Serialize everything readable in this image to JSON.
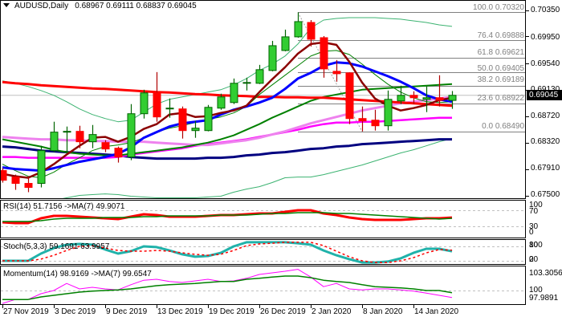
{
  "chart_data": {
    "type": "candlestick",
    "title": "AUDUSD,Daily",
    "ohlc_text": "0.68967 0.69111 0.68837 0.69045",
    "ohlc_summary": {
      "open": "0.68967",
      "high": "0.69111",
      "low": "0.68837",
      "close": "0.69045"
    },
    "ylim": [
      0.675,
      0.7035
    ],
    "y_ticks": [
      "0.70350",
      "0.69950",
      "0.69540",
      "0.69130",
      "0.68720",
      "0.68320",
      "0.67910",
      "0.67500"
    ],
    "current_price": "0.69045",
    "current_price_value": 0.69045,
    "x_ticks": [
      {
        "index": 0,
        "label": "27 Nov 2019"
      },
      {
        "index": 4,
        "label": "3 Dec 2019"
      },
      {
        "index": 8,
        "label": "9 Dec 2019"
      },
      {
        "index": 12,
        "label": "13 Dec 2019"
      },
      {
        "index": 16,
        "label": "19 Dec 2019"
      },
      {
        "index": 20,
        "label": "26 Dec 2019"
      },
      {
        "index": 24,
        "label": "2 Jan 2020"
      },
      {
        "index": 28,
        "label": "8 Jan 2020"
      },
      {
        "index": 32,
        "label": "14 Jan 2020"
      }
    ],
    "colors": {
      "bull_body": "#32cd32",
      "bull_edge": "#006400",
      "bear_body": "#ff0000",
      "bear_edge": "#b00000",
      "bid_line": "#c0c0c0"
    },
    "candle_fields": [
      "open",
      "high",
      "low",
      "close"
    ],
    "candles": [
      [
        0.67888,
        0.67925,
        0.67703,
        0.6774
      ],
      [
        0.67789,
        0.67826,
        0.67592,
        0.67691
      ],
      [
        0.67691,
        0.67801,
        0.67556,
        0.67629
      ],
      [
        0.67691,
        0.68269,
        0.67629,
        0.68195
      ],
      [
        0.68195,
        0.68639,
        0.68171,
        0.68479
      ],
      [
        0.68479,
        0.68565,
        0.68171,
        0.68491
      ],
      [
        0.68491,
        0.68577,
        0.68232,
        0.68331
      ],
      [
        0.68331,
        0.68589,
        0.68232,
        0.68442
      ],
      [
        0.68318,
        0.68355,
        0.68171,
        0.6822
      ],
      [
        0.68232,
        0.68257,
        0.68011,
        0.68097
      ],
      [
        0.68097,
        0.6891,
        0.68048,
        0.68762
      ],
      [
        0.68762,
        0.69131,
        0.68688,
        0.69082
      ],
      [
        0.69082,
        0.69402,
        0.68639,
        0.68713
      ],
      [
        0.68836,
        0.68996,
        0.68701,
        0.68848
      ],
      [
        0.68836,
        0.68873,
        0.6838,
        0.68503
      ],
      [
        0.68503,
        0.68651,
        0.68392,
        0.6854
      ],
      [
        0.68503,
        0.68897,
        0.68491,
        0.6886
      ],
      [
        0.68848,
        0.6907,
        0.68823,
        0.6902
      ],
      [
        0.68934,
        0.69303,
        0.6891,
        0.6923
      ],
      [
        0.6923,
        0.69316,
        0.69119,
        0.69242
      ],
      [
        0.6923,
        0.69513,
        0.69218,
        0.69439
      ],
      [
        0.69427,
        0.69882,
        0.69414,
        0.69808
      ],
      [
        0.69734,
        0.70055,
        0.69722,
        0.69944
      ],
      [
        0.69944,
        0.7032,
        0.69931,
        0.70178
      ],
      [
        0.70165,
        0.70202,
        0.69796,
        0.69907
      ],
      [
        0.69931,
        0.69956,
        0.69316,
        0.69451
      ],
      [
        0.69414,
        0.69587,
        0.69254,
        0.69377
      ],
      [
        0.6939,
        0.694,
        0.68602,
        0.68688
      ],
      [
        0.68688,
        0.68873,
        0.6849,
        0.68651
      ],
      [
        0.68663,
        0.68823,
        0.68503,
        0.68577
      ],
      [
        0.68577,
        0.69119,
        0.68503,
        0.68983
      ],
      [
        0.68959,
        0.69193,
        0.6891,
        0.69045
      ],
      [
        0.69045,
        0.69107,
        0.6891,
        0.69008
      ],
      [
        0.68983,
        0.69181,
        0.68787,
        0.69008
      ],
      [
        0.69008,
        0.69353,
        0.68873,
        0.68971
      ],
      [
        0.68967,
        0.69111,
        0.68837,
        0.69045
      ]
    ],
    "overlays": [
      {
        "name": "bollinger-upper",
        "color": "#3cb371",
        "width": 1,
        "values": [
          0.69267,
          0.6923,
          0.6918,
          0.69119,
          0.69045,
          0.68946,
          0.68836,
          0.6875,
          0.68688,
          0.68639,
          0.68663,
          0.68786,
          0.6891,
          0.68983,
          0.6902,
          0.69057,
          0.69094,
          0.69131,
          0.69205,
          0.69303,
          0.69427,
          0.69525,
          0.69648,
          0.69833,
          0.70079,
          0.70202,
          0.70227,
          0.70239,
          0.70239,
          0.70239,
          0.70227,
          0.70215,
          0.7019,
          0.70165,
          0.70128,
          0.70104
        ]
      },
      {
        "name": "bollinger-lower",
        "color": "#3cb371",
        "width": 1,
        "values": [
          0.67309,
          0.67334,
          0.67371,
          0.67407,
          0.67432,
          0.67469,
          0.67506,
          0.67518,
          0.6753,
          0.67518,
          0.67494,
          0.67481,
          0.67469,
          0.67469,
          0.67469,
          0.67469,
          0.67481,
          0.67494,
          0.67555,
          0.67604,
          0.67641,
          0.67703,
          0.67777,
          0.67789,
          0.67789,
          0.67826,
          0.67875,
          0.67925,
          0.67974,
          0.68035,
          0.68097,
          0.68159,
          0.68208,
          0.68269,
          0.68331,
          0.6838
        ]
      },
      {
        "name": "ma-navy",
        "color": "#000080",
        "width": 3,
        "values": [
          0.68257,
          0.68245,
          0.6822,
          0.68195,
          0.68183,
          0.68171,
          0.68159,
          0.68146,
          0.68134,
          0.68122,
          0.68097,
          0.68085,
          0.68072,
          0.68072,
          0.68072,
          0.68072,
          0.68085,
          0.68085,
          0.68097,
          0.68122,
          0.68134,
          0.68159,
          0.68171,
          0.68195,
          0.6822,
          0.68232,
          0.68257,
          0.68269,
          0.68294,
          0.68306,
          0.68318,
          0.68331,
          0.68343,
          0.68355,
          0.68368,
          0.68368
        ]
      },
      {
        "name": "ma-magenta",
        "color": "#ff00ff",
        "width": 2.5,
        "values": [
          0.68097,
          0.68097,
          0.68085,
          0.68085,
          0.68085,
          0.68085,
          0.68085,
          0.68085,
          0.68085,
          0.68097,
          0.68134,
          0.68159,
          0.68183,
          0.68208,
          0.68232,
          0.68269,
          0.68294,
          0.68318,
          0.68343,
          0.68368,
          0.68405,
          0.68442,
          0.68479,
          0.68516,
          0.68565,
          0.68602,
          0.68626,
          0.68626,
          0.68639,
          0.68639,
          0.68651,
          0.68663,
          0.68676,
          0.68688,
          0.68701,
          0.68701
        ]
      },
      {
        "name": "ma-violet",
        "color": "#ee82ee",
        "width": 3,
        "values": [
          0.68405,
          0.68392,
          0.6838,
          0.68368,
          0.68368,
          0.68355,
          0.68355,
          0.68343,
          0.68343,
          0.68331,
          0.68331,
          0.68331,
          0.68318,
          0.68306,
          0.68294,
          0.68282,
          0.68282,
          0.68306,
          0.68331,
          0.68355,
          0.68392,
          0.68442,
          0.68491,
          0.68553,
          0.68614,
          0.68663,
          0.68713,
          0.68762,
          0.68811,
          0.68848,
          0.68885,
          0.68922,
          0.68946,
          0.68971,
          0.68996,
          0.6902
        ]
      },
      {
        "name": "ma-dark-green",
        "color": "#008000",
        "width": 2,
        "values": [
          0.68368,
          0.68331,
          0.68294,
          0.68257,
          0.68208,
          0.68171,
          0.68146,
          0.68134,
          0.68122,
          0.68122,
          0.68146,
          0.68171,
          0.68195,
          0.6822,
          0.68245,
          0.68282,
          0.68318,
          0.68368,
          0.68429,
          0.68516,
          0.68602,
          0.68701,
          0.68786,
          0.68873,
          0.68959,
          0.6902,
          0.69057,
          0.69094,
          0.69131,
          0.69143,
          0.69156,
          0.69168,
          0.6918,
          0.69193,
          0.69205,
          0.69217
        ]
      },
      {
        "name": "ma-red",
        "color": "#ff0000",
        "width": 3,
        "values": [
          0.69248,
          0.6923,
          0.69217,
          0.69199,
          0.69186,
          0.69174,
          0.69162,
          0.69149,
          0.69143,
          0.69131,
          0.69119,
          0.69107,
          0.69094,
          0.69088,
          0.69076,
          0.69063,
          0.69057,
          0.69045,
          0.69039,
          0.69033,
          0.6902,
          0.6902,
          0.69014,
          0.69014,
          0.69008,
          0.69008,
          0.68996,
          0.68983,
          0.68971,
          0.68959,
          0.68946,
          0.68934,
          0.68922,
          0.6891,
          0.68897,
          0.68885
        ]
      },
      {
        "name": "ma-thin-green",
        "color": "#008000",
        "width": 1,
        "values": [
          0.67986,
          0.67888,
          0.67801,
          0.67777,
          0.67863,
          0.67986,
          0.68085,
          0.68195,
          0.68257,
          0.68282,
          0.68318,
          0.68392,
          0.68479,
          0.6854,
          0.68577,
          0.68626,
          0.68676,
          0.68713,
          0.68774,
          0.68873,
          0.69057,
          0.69205,
          0.69353,
          0.695,
          0.69648,
          0.69722,
          0.69734,
          0.69673,
          0.69525,
          0.69365,
          0.69217,
          0.69094,
          0.69008,
          0.68946,
          0.68934,
          0.68946
        ]
      },
      {
        "name": "ma-blue",
        "color": "#0000ff",
        "width": 3,
        "values": [
          0.67937,
          0.67912,
          0.679,
          0.67888,
          0.67925,
          0.67974,
          0.68023,
          0.6806,
          0.68097,
          0.68146,
          0.68245,
          0.68392,
          0.68479,
          0.68565,
          0.68614,
          0.68639,
          0.68663,
          0.6875,
          0.68823,
          0.68873,
          0.68934,
          0.69008,
          0.69143,
          0.69303,
          0.6939,
          0.695,
          0.6955,
          0.69537,
          0.69488,
          0.69414,
          0.6934,
          0.69254,
          0.69156,
          0.69045,
          0.68983,
          0.68946
        ]
      },
      {
        "name": "ma-maroon",
        "color": "#8b0000",
        "width": 2.5,
        "values": [
          0.67838,
          0.67801,
          0.67777,
          0.67863,
          0.67986,
          0.68134,
          0.68269,
          0.68392,
          0.68405,
          0.68331,
          0.68405,
          0.68528,
          0.68602,
          0.6875,
          0.68774,
          0.68713,
          0.68725,
          0.68774,
          0.68811,
          0.68885,
          0.69094,
          0.69291,
          0.69476,
          0.69685,
          0.69833,
          0.69858,
          0.69821,
          0.69562,
          0.69242,
          0.68996,
          0.68885,
          0.68811,
          0.68848,
          0.68897,
          0.68971,
          0.69008
        ]
      }
    ],
    "fibonacci": {
      "color": "#808080",
      "anchor_high_index": 23,
      "anchor_low_index": 28,
      "levels": [
        {
          "label": "100.0 0.70320",
          "ratio": "100.0",
          "price": 0.7032
        },
        {
          "label": "76.4 0.69888",
          "ratio": "76.4",
          "price": 0.69888
        },
        {
          "label": "61.8 0.69621",
          "ratio": "61.8",
          "price": 0.69621
        },
        {
          "label": "50.0 0.69405",
          "ratio": "50.0",
          "price": 0.69405
        },
        {
          "label": "38.2 0.69189",
          "ratio": "38.2",
          "price": 0.69189
        },
        {
          "label": "23.6 0.68922",
          "ratio": "23.6",
          "price": 0.68922
        },
        {
          "label": "0.0 0.68490",
          "ratio": "0.0",
          "price": 0.6849
        }
      ]
    },
    "indicators": [
      {
        "name": "RSI",
        "label": "RSI(14) 51.7156  ->MA(7) 49.9071",
        "ylim": [
          0,
          100
        ],
        "axis_labels": [
          "100",
          "70",
          "30",
          "0"
        ],
        "levels": [
          70,
          30
        ],
        "series": [
          {
            "name": "RSI(14)",
            "color": "#ff0000",
            "width": 3,
            "dash": "",
            "values": [
              40,
              38,
              38,
              50,
              56,
              56,
              54,
              52,
              50,
              48,
              54,
              60,
              58,
              54,
              54,
              54,
              56,
              58,
              58,
              60,
              62,
              62,
              66,
              70,
              70,
              62,
              58,
              52,
              48,
              46,
              46,
              46,
              48,
              50,
              50,
              51.7156
            ]
          },
          {
            "name": "MA(7)",
            "color": "#008000",
            "width": 1.5,
            "dash": "",
            "values": [
              42,
              42,
              42,
              44,
              48,
              50,
              50,
              50,
              52,
              52,
              52,
              54,
              54,
              56,
              56,
              56,
              56,
              58,
              58,
              58,
              60,
              62,
              62,
              64,
              64,
              64,
              62,
              62,
              60,
              58,
              56,
              54,
              52,
              50,
              48,
              49.9071
            ]
          }
        ]
      },
      {
        "name": "Stochastic",
        "label": "Stoch(5,3,3) 59.1691 63.9957",
        "ylim": [
          0,
          100
        ],
        "axis_labels": [
          "100",
          "80",
          "20",
          "0"
        ],
        "levels": [
          80,
          20
        ],
        "series": [
          {
            "name": "%K",
            "color": "#20b2aa",
            "width": 3,
            "dash": "",
            "values": [
              20,
              20,
              20,
              50,
              73,
              87,
              90,
              87,
              67,
              50,
              60,
              80,
              77,
              63,
              47,
              37,
              40,
              53,
              80,
              97,
              97,
              97,
              97,
              93,
              87,
              63,
              43,
              27,
              13,
              13,
              17,
              30,
              53,
              70,
              70,
              59.1691
            ]
          },
          {
            "name": "%D",
            "color": "#ff0000",
            "width": 1.5,
            "dash": "3,3",
            "values": [
              20,
              20,
              20,
              27,
              43,
              63,
              80,
              83,
              73,
              63,
              60,
              60,
              63,
              60,
              53,
              47,
              43,
              47,
              63,
              83,
              90,
              93,
              97,
              97,
              97,
              83,
              60,
              37,
              20,
              13,
              13,
              20,
              33,
              53,
              67,
              63.9957
            ]
          }
        ]
      },
      {
        "name": "Momentum",
        "label": "Momentum(14) 98.9169  ->MA(7) 99.6547",
        "ylim": [
          97.9891,
          103.3056
        ],
        "axis_labels": [
          "103.3056",
          "100",
          "97.9891"
        ],
        "levels": [
          100
        ],
        "series": [
          {
            "name": "Momentum(14)",
            "color": "#ff00ff",
            "width": 1,
            "dash": "",
            "values": [
              97.9891,
              98.6,
              98.6,
              99.5,
              100,
              101.1,
              100.25,
              100.5,
              100.25,
              100.1,
              100.9,
              101.6,
              101.75,
              101.4,
              101.25,
              101.5,
              101.75,
              101.4,
              101.5,
              101.9,
              102.5,
              102.75,
              103.0,
              103.3056,
              102.1,
              100.6,
              101.1,
              100.25,
              100.1,
              100.25,
              100.25,
              100.1,
              99.9,
              99.6,
              99.25,
              98.9169
            ]
          },
          {
            "name": "MA(7)",
            "color": "#008000",
            "width": 1.5,
            "dash": "",
            "values": [
              98.6,
              98.6,
              98.6,
              99.0,
              99.25,
              99.5,
              99.75,
              99.9,
              100.0,
              100.1,
              100.25,
              100.5,
              100.75,
              100.9,
              101.0,
              101.1,
              101.25,
              101.4,
              101.4,
              101.75,
              101.9,
              102.1,
              102.25,
              102.25,
              102.0,
              101.6,
              101.4,
              101.25,
              100.9,
              100.6,
              100.5,
              100.4,
              100.25,
              100.0,
              100.0,
              99.6547
            ]
          }
        ]
      }
    ]
  }
}
